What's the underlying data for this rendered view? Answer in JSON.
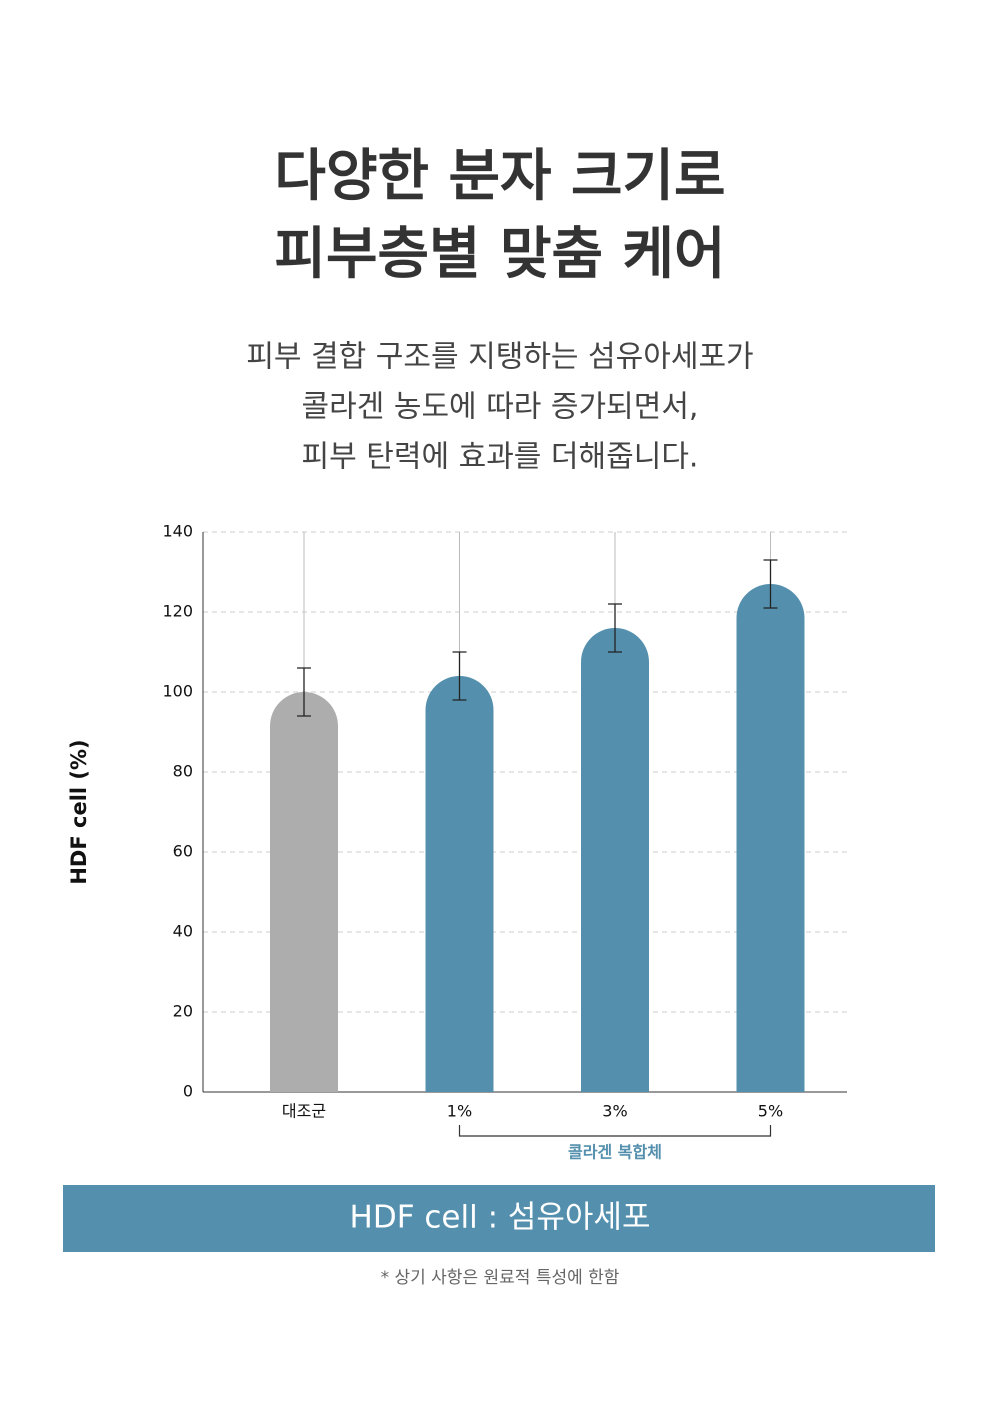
{
  "header": {
    "title": [
      "다양한 분자 크기로",
      "피부층별 맞춤 케어"
    ],
    "description": [
      "피부 결합 구조를 지탱하는 섬유아세포가",
      "콜라겐 농도에 따라 증가되면서,",
      "피부 탄력에 효과를 더해줍니다."
    ]
  },
  "chart_data": {
    "type": "bar",
    "y_label": "HDF cell (%)",
    "categories": [
      "대조군",
      "1%",
      "3%",
      "5%"
    ],
    "values": [
      100,
      104,
      116,
      127
    ],
    "errors": [
      6,
      6,
      6,
      6
    ],
    "colors": [
      "#adadad",
      "#5490ad",
      "#5490ad",
      "#5490ad"
    ],
    "ylim": [
      0,
      140
    ],
    "yticks": [
      0,
      20,
      40,
      60,
      80,
      100,
      120,
      140
    ],
    "grid": true,
    "group_label": "콜라겐 복합체"
  },
  "banner": "HDF cell : 섬유아세포",
  "note": "* 상기 사항은 원료적 특성에 한함"
}
